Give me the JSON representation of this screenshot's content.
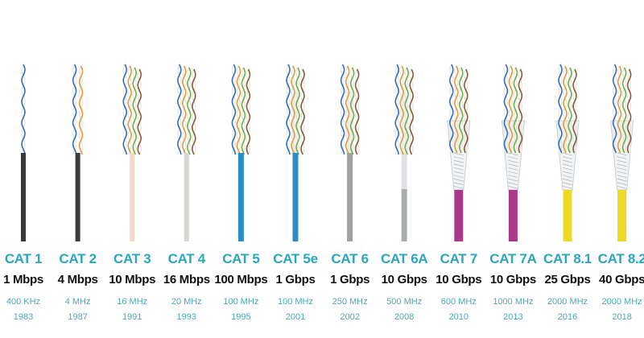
{
  "cables": [
    {
      "name": "CAT 1",
      "speed": "1 Mbps",
      "frequency": "400 KHz",
      "year": "1983",
      "jacket_color": "#3a3a3a",
      "shield": "none",
      "pairs": 1
    },
    {
      "name": "CAT 2",
      "speed": "4 Mbps",
      "frequency": "4 MHz",
      "year": "1987",
      "jacket_color": "#3c3c3c",
      "shield": "none",
      "pairs": 2
    },
    {
      "name": "CAT 3",
      "speed": "10 Mbps",
      "frequency": "16 MHz",
      "year": "1991",
      "jacket_color": "#efdcc3",
      "shield": "none",
      "pairs": 4
    },
    {
      "name": "CAT 4",
      "speed": "16 Mbps",
      "frequency": "20 MHz",
      "year": "1993",
      "jacket_color": "#d6d6d2",
      "shield": "none",
      "pairs": 4
    },
    {
      "name": "CAT 5",
      "speed": "100 Mbps",
      "frequency": "100 MHz",
      "year": "1995",
      "jacket_color": "#2b8dc8",
      "shield": "none",
      "pairs": 4
    },
    {
      "name": "CAT 5e",
      "speed": "1 Gbps",
      "frequency": "100 MHz",
      "year": "2001",
      "jacket_color": "#2b8dc8",
      "shield": "spline",
      "pairs": 4
    },
    {
      "name": "CAT 6",
      "speed": "1 Gbps",
      "frequency": "250 MHz",
      "year": "2002",
      "jacket_color": "#9ea2a4",
      "shield": "spline",
      "pairs": 4
    },
    {
      "name": "CAT 6A",
      "speed": "10 Gbps",
      "frequency": "500 MHz",
      "year": "2008",
      "jacket_color": "#a9adaf",
      "shield": "foil",
      "pairs": 4
    },
    {
      "name": "CAT 7",
      "speed": "10 Gbps",
      "frequency": "600 MHz",
      "year": "2010",
      "jacket_color": "#a83a8a",
      "shield": "braid",
      "pairs": 4
    },
    {
      "name": "CAT 7A",
      "speed": "10 Gbps",
      "frequency": "1000 MHz",
      "year": "2013",
      "jacket_color": "#a83a8a",
      "shield": "braid",
      "pairs": 4
    },
    {
      "name": "CAT 8.1",
      "speed": "25 Gbps",
      "frequency": "2000 MHz",
      "year": "2016",
      "jacket_color": "#ecd923",
      "shield": "braid",
      "pairs": 4
    },
    {
      "name": "CAT 8.2",
      "speed": "40 Gbps",
      "frequency": "2000 MHz",
      "year": "2018",
      "jacket_color": "#ecd923",
      "shield": "braid",
      "pairs": 4
    }
  ],
  "colors": {
    "label_accent": "#2aa6bd",
    "wire_blue": "#2f6fb8",
    "wire_orange": "#e59a3a",
    "wire_green": "#6fae43",
    "wire_brown": "#8a5a34",
    "shield_foil": "#dfe3e6"
  }
}
